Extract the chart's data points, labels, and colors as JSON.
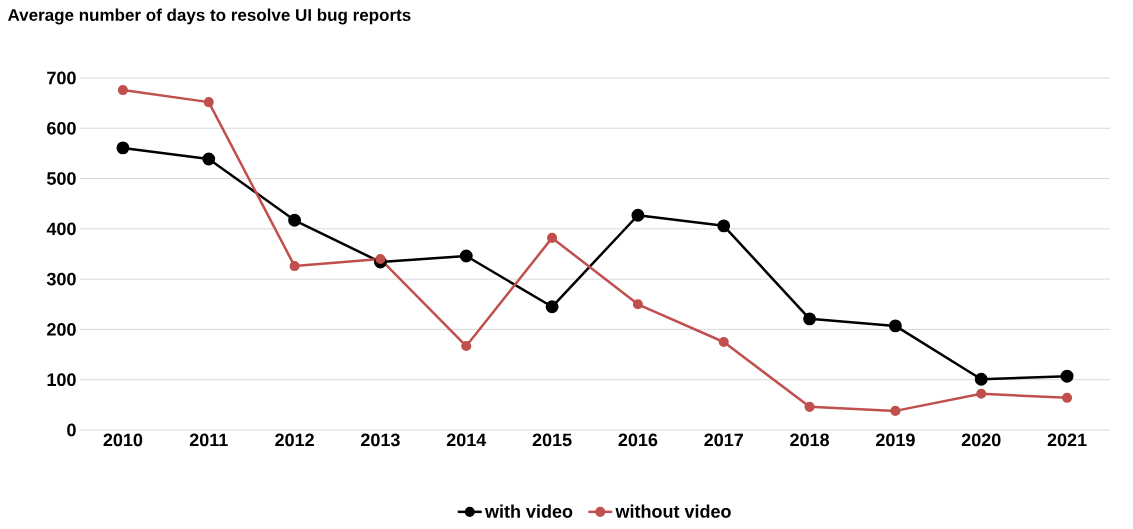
{
  "chart_data": {
    "type": "line",
    "title": "Average number of days to resolve UI bug reports",
    "categories": [
      "2010",
      "2011",
      "2012",
      "2013",
      "2014",
      "2015",
      "2016",
      "2017",
      "2018",
      "2019",
      "2020",
      "2021"
    ],
    "series": [
      {
        "name": "with video",
        "color": "#000000",
        "values": [
          561,
          539,
          417,
          334,
          346,
          245,
          427,
          406,
          221,
          207,
          101,
          107
        ]
      },
      {
        "name": "without video",
        "color": "#c0504d",
        "values": [
          676,
          652,
          326,
          340,
          167,
          382,
          250,
          175,
          46,
          38,
          72,
          64
        ]
      }
    ],
    "ylim": [
      0,
      700
    ],
    "yticks": [
      0,
      100,
      200,
      300,
      400,
      500,
      600,
      700
    ],
    "grid": "y",
    "legend": "bottom",
    "marker": "circle",
    "line_style": "solid"
  }
}
